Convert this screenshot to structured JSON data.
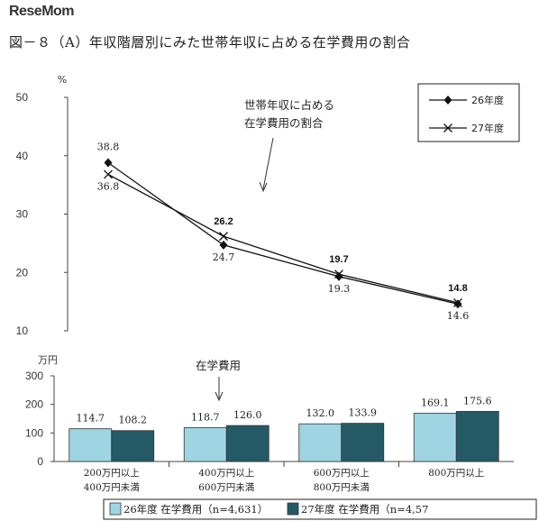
{
  "title": "図－８（A）年収階層別にみた世帯年収に占める在学費用の割合",
  "colors": {
    "bar_fy26": "#9fd4e3",
    "bar_fy27": "#245a66",
    "line": "#111111"
  },
  "chart_data": [
    {
      "type": "line",
      "unit_label": "%",
      "ylim": [
        10,
        50
      ],
      "yticks": [
        10,
        20,
        30,
        40,
        50
      ],
      "categories": [
        "200万円以上\n400万円未満",
        "400万円以上\n600万円未満",
        "600万円以上\n800万円未満",
        "800万円以上"
      ],
      "series": [
        {
          "name": "26年度",
          "marker": "diamond",
          "values": [
            38.8,
            24.7,
            19.3,
            14.6
          ],
          "labels": [
            "38.8",
            "24.7",
            "19.3",
            "14.6"
          ]
        },
        {
          "name": "27年度",
          "marker": "x",
          "values": [
            36.8,
            26.2,
            19.7,
            14.8
          ],
          "labels": [
            "36.8",
            "26.2",
            "19.7",
            "14.8"
          ]
        }
      ],
      "annotation": [
        "世帯年収に占める",
        "在学費用の割合"
      ],
      "legend_position": "top-right"
    },
    {
      "type": "bar",
      "unit_label": "万円",
      "ylim": [
        0,
        300
      ],
      "yticks": [
        0,
        100,
        200,
        300
      ],
      "categories": [
        [
          "200万円以上",
          "400万円未満"
        ],
        [
          "400万円以上",
          "600万円未満"
        ],
        [
          "600万円以上",
          "800万円未満"
        ],
        [
          "800万円以上"
        ]
      ],
      "series": [
        {
          "name": "26年度  在学費用（n=4,631）",
          "values": [
            114.7,
            118.7,
            132.0,
            169.1
          ],
          "labels": [
            "114.7",
            "118.7",
            "132.0",
            "169.1"
          ]
        },
        {
          "name": "27年度  在学費用（n=4,57",
          "values": [
            108.2,
            126.0,
            133.9,
            175.6
          ],
          "labels": [
            "108.2",
            "126.0",
            "133.9",
            "175.6"
          ]
        }
      ],
      "annotation": "在学費用",
      "legend_position": "bottom"
    }
  ],
  "watermark": "ReseMom"
}
